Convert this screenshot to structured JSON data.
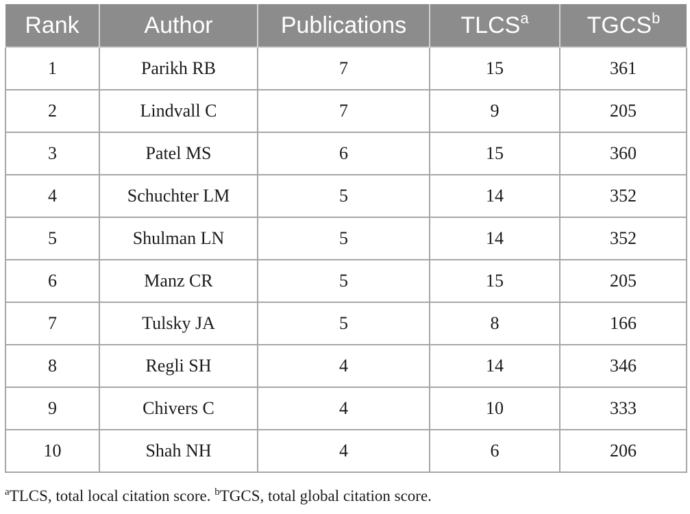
{
  "table": {
    "headers": {
      "rank": "Rank",
      "author": "Author",
      "publications": "Publications",
      "tlcs": "TLCS",
      "tlcs_sup": "a",
      "tgcs": "TGCS",
      "tgcs_sup": "b"
    },
    "rows": [
      {
        "rank": "1",
        "author": "Parikh RB",
        "publications": "7",
        "tlcs": "15",
        "tgcs": "361"
      },
      {
        "rank": "2",
        "author": "Lindvall C",
        "publications": "7",
        "tlcs": "9",
        "tgcs": "205"
      },
      {
        "rank": "3",
        "author": "Patel MS",
        "publications": "6",
        "tlcs": "15",
        "tgcs": "360"
      },
      {
        "rank": "4",
        "author": "Schuchter LM",
        "publications": "5",
        "tlcs": "14",
        "tgcs": "352"
      },
      {
        "rank": "5",
        "author": "Shulman LN",
        "publications": "5",
        "tlcs": "14",
        "tgcs": "352"
      },
      {
        "rank": "6",
        "author": "Manz CR",
        "publications": "5",
        "tlcs": "15",
        "tgcs": "205"
      },
      {
        "rank": "7",
        "author": "Tulsky JA",
        "publications": "5",
        "tlcs": "8",
        "tgcs": "166"
      },
      {
        "rank": "8",
        "author": "Regli SH",
        "publications": "4",
        "tlcs": "14",
        "tgcs": "346"
      },
      {
        "rank": "9",
        "author": "Chivers C",
        "publications": "4",
        "tlcs": "10",
        "tgcs": "333"
      },
      {
        "rank": "10",
        "author": "Shah NH",
        "publications": "4",
        "tlcs": "6",
        "tgcs": "206"
      }
    ]
  },
  "footnote": {
    "a_mark": "a",
    "a_text": "TLCS, total local citation score. ",
    "b_mark": "b",
    "b_text": "TGCS, total global citation score."
  },
  "colors": {
    "header_background": "#8c8c8c",
    "header_text": "#ffffff",
    "cell_border": "#a6a6a6",
    "body_text": "#1a1a1a"
  }
}
